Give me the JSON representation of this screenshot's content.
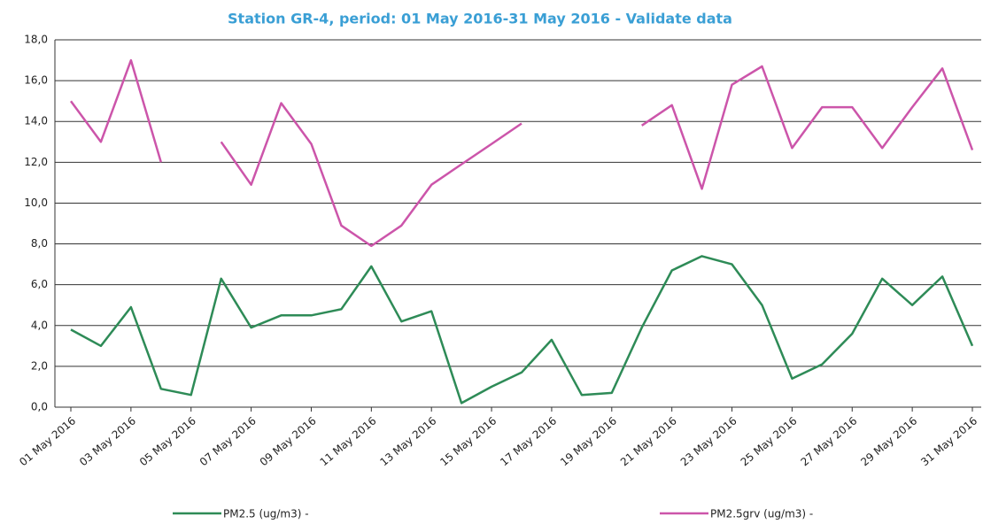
{
  "chart_data": {
    "type": "line",
    "title": "Station GR-4, period: 01 May 2016-31 May 2016 - Validate data",
    "categories": [
      "01 May 2016",
      null,
      "03 May 2016",
      null,
      "05 May 2016",
      null,
      "07 May 2016",
      null,
      "09 May 2016",
      null,
      "11 May 2016",
      null,
      "13 May 2016",
      null,
      "15 May 2016",
      null,
      "17 May 2016",
      null,
      "19 May 2016",
      null,
      "21 May 2016",
      null,
      "23 May 2016",
      null,
      "25 May 2016",
      null,
      "27 May 2016",
      null,
      "29 May 2016",
      null,
      "31 May 2016"
    ],
    "series": [
      {
        "name": "PM2.5 (ug/m3) -",
        "color": "#2e8b57",
        "values": [
          3.8,
          3.0,
          4.9,
          0.9,
          0.6,
          6.3,
          3.9,
          4.5,
          4.5,
          4.8,
          6.9,
          4.2,
          4.7,
          0.2,
          1.0,
          1.7,
          3.3,
          0.6,
          0.7,
          3.9,
          6.7,
          7.4,
          7.0,
          5.0,
          1.4,
          2.1,
          3.6,
          6.3,
          5.0,
          6.4,
          3.0
        ]
      },
      {
        "name": "PM2.5grv (ug/m3) -",
        "color": "#cc55aa",
        "values": [
          15.0,
          13.0,
          17.0,
          12.0,
          null,
          13.0,
          10.9,
          14.9,
          12.9,
          8.9,
          7.9,
          8.9,
          10.9,
          11.9,
          12.9,
          13.9,
          null,
          null,
          null,
          13.8,
          14.8,
          10.7,
          15.8,
          16.7,
          12.7,
          14.7,
          14.7,
          12.7,
          14.7,
          16.6,
          12.6
        ]
      }
    ],
    "ylim": [
      0,
      18
    ],
    "yticks": [
      {
        "value": 0,
        "label": "0,0"
      },
      {
        "value": 2,
        "label": "2,0"
      },
      {
        "value": 4,
        "label": "4,0"
      },
      {
        "value": 6,
        "label": "6,0"
      },
      {
        "value": 8,
        "label": "8,0"
      },
      {
        "value": 10,
        "label": "10,0"
      },
      {
        "value": 12,
        "label": "12,0"
      },
      {
        "value": 14,
        "label": "14,0"
      },
      {
        "value": 16,
        "label": "16,0"
      },
      {
        "value": 18,
        "label": "18,0"
      }
    ],
    "grid": true
  }
}
